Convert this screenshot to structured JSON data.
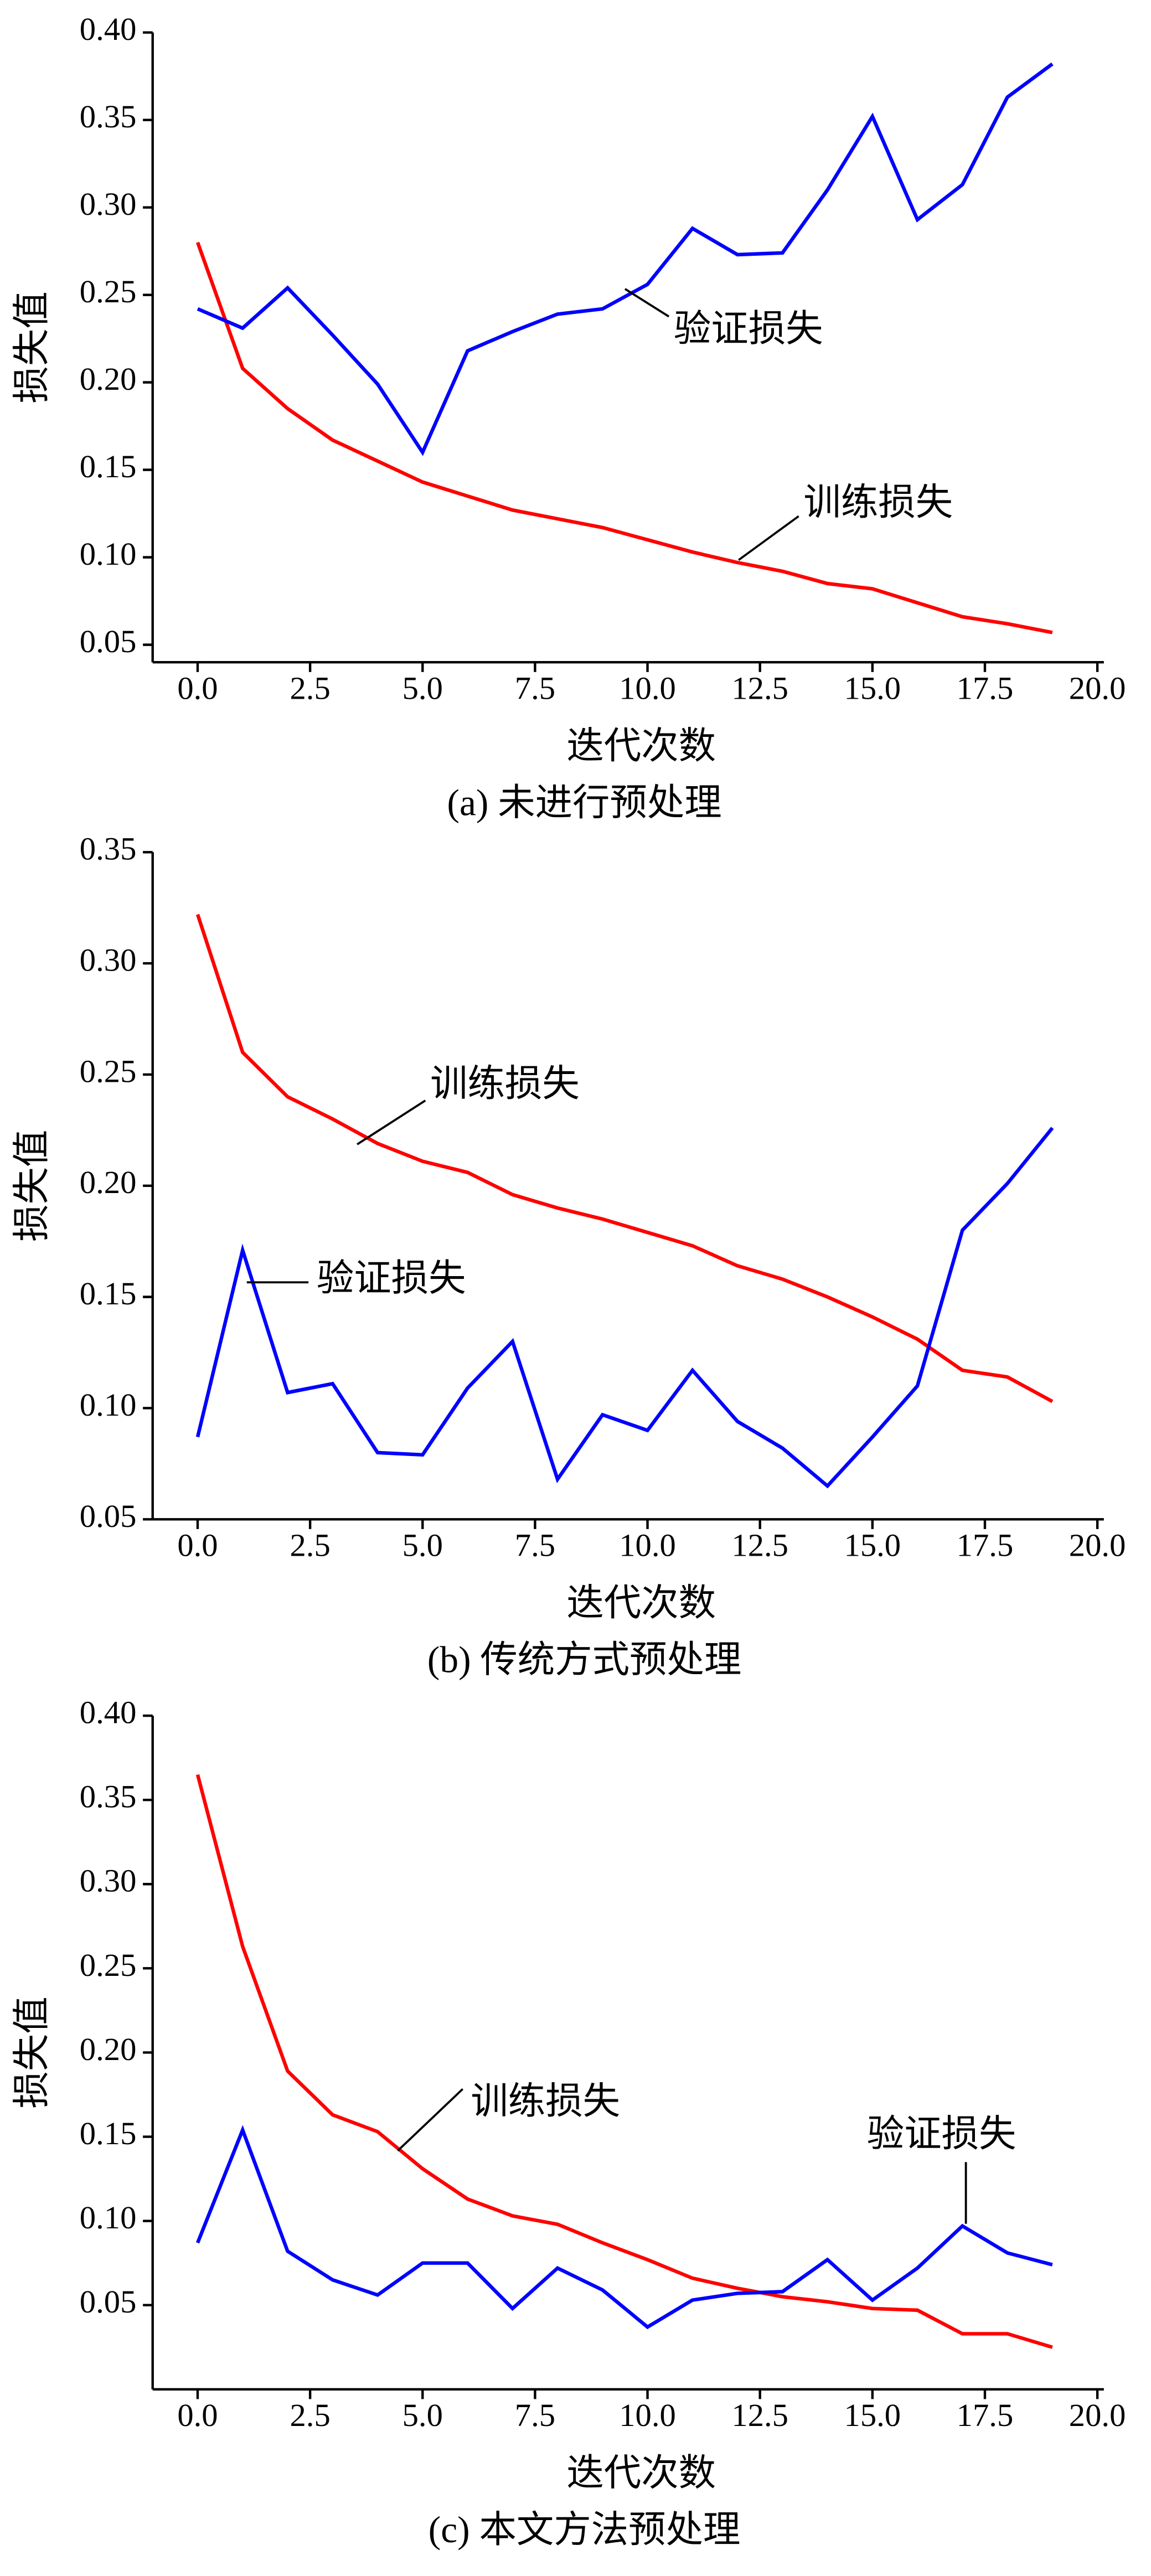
{
  "chart_data": [
    {
      "type": "line",
      "caption": "(a) 未进行预处理",
      "x_label": "迭代次数",
      "y_label": "损失值",
      "x": [
        0,
        1,
        2,
        3,
        4,
        5,
        6,
        7,
        8,
        9,
        10,
        11,
        12,
        13,
        14,
        15,
        16,
        17,
        18,
        19
      ],
      "series": [
        {
          "name": "训练损失",
          "color": "#ff0000",
          "values": [
            0.28,
            0.208,
            0.185,
            0.167,
            0.155,
            0.143,
            0.135,
            0.127,
            0.122,
            0.117,
            0.11,
            0.103,
            0.097,
            0.092,
            0.085,
            0.082,
            0.074,
            0.066,
            0.062,
            0.057
          ]
        },
        {
          "name": "验证损失",
          "color": "#0000ff",
          "values": [
            0.242,
            0.231,
            0.254,
            0.227,
            0.199,
            0.16,
            0.218,
            0.229,
            0.239,
            0.242,
            0.256,
            0.288,
            0.273,
            0.274,
            0.31,
            0.352,
            0.293,
            0.313,
            0.363,
            0.382
          ]
        }
      ],
      "xlim": [
        -1,
        20
      ],
      "ylim": [
        0.04,
        0.4
      ],
      "xticks": [
        {
          "value": 0,
          "label": "0.0"
        },
        2.5,
        {
          "value": 5,
          "label": "5.0"
        },
        7.5,
        {
          "value": 10,
          "label": "10.0"
        },
        12.5,
        {
          "value": 15,
          "label": "15.0"
        },
        17.5,
        {
          "value": 20,
          "label": "20.0"
        }
      ],
      "yticks": [
        0.05,
        {
          "value": 0.1,
          "label": "0.10"
        },
        0.15,
        {
          "value": 0.2,
          "label": "0.20"
        },
        0.25,
        {
          "value": 0.3,
          "label": "0.30"
        },
        0.35,
        {
          "value": 0.4,
          "label": "0.40"
        }
      ]
    },
    {
      "type": "line",
      "caption": "(b) 传统方式预处理",
      "x_label": "迭代次数",
      "y_label": "损失值",
      "x": [
        0,
        1,
        2,
        3,
        4,
        5,
        6,
        7,
        8,
        9,
        10,
        11,
        12,
        13,
        14,
        15,
        16,
        17,
        18,
        19
      ],
      "series": [
        {
          "name": "训练损失",
          "color": "#ff0000",
          "values": [
            0.322,
            0.26,
            0.24,
            0.23,
            0.219,
            0.211,
            0.206,
            0.196,
            0.19,
            0.185,
            0.179,
            0.173,
            0.164,
            0.158,
            0.15,
            0.141,
            0.131,
            0.117,
            0.114,
            0.103
          ]
        },
        {
          "name": "验证损失",
          "color": "#0000ff",
          "values": [
            0.087,
            0.171,
            0.107,
            0.111,
            0.08,
            0.079,
            0.109,
            0.13,
            0.068,
            0.097,
            0.09,
            0.117,
            0.094,
            0.082,
            0.065,
            0.087,
            0.11,
            0.18,
            0.201,
            0.226
          ]
        }
      ],
      "xlim": [
        -1,
        20
      ],
      "ylim": [
        0.05,
        0.35
      ],
      "xticks": [
        {
          "value": 0,
          "label": "0.0"
        },
        2.5,
        {
          "value": 5,
          "label": "5.0"
        },
        7.5,
        {
          "value": 10,
          "label": "10.0"
        },
        12.5,
        {
          "value": 15,
          "label": "15.0"
        },
        17.5,
        {
          "value": 20,
          "label": "20.0"
        }
      ],
      "yticks": [
        0.05,
        {
          "value": 0.1,
          "label": "0.10"
        },
        0.15,
        {
          "value": 0.2,
          "label": "0.20"
        },
        0.25,
        {
          "value": 0.3,
          "label": "0.30"
        },
        0.35
      ]
    },
    {
      "type": "line",
      "caption": "(c) 本文方法预处理",
      "x_label": "迭代次数",
      "y_label": "损失值",
      "x": [
        0,
        1,
        2,
        3,
        4,
        5,
        6,
        7,
        8,
        9,
        10,
        11,
        12,
        13,
        14,
        15,
        16,
        17,
        18,
        19
      ],
      "series": [
        {
          "name": "训练损失",
          "color": "#ff0000",
          "values": [
            0.365,
            0.263,
            0.189,
            0.163,
            0.153,
            0.131,
            0.113,
            0.103,
            0.098,
            0.087,
            0.077,
            0.066,
            0.06,
            0.055,
            0.052,
            0.048,
            0.047,
            0.033,
            0.033,
            0.025
          ]
        },
        {
          "name": "验证损失",
          "color": "#0000ff",
          "values": [
            0.087,
            0.154,
            0.082,
            0.065,
            0.056,
            0.075,
            0.075,
            0.048,
            0.072,
            0.059,
            0.037,
            0.053,
            0.057,
            0.058,
            0.077,
            0.053,
            0.072,
            0.097,
            0.081,
            0.074
          ]
        }
      ],
      "xlim": [
        -1,
        20
      ],
      "ylim": [
        0,
        0.4
      ],
      "xticks": [
        {
          "value": 0,
          "label": "0.0"
        },
        2.5,
        {
          "value": 5,
          "label": "5.0"
        },
        7.5,
        {
          "value": 10,
          "label": "10.0"
        },
        12.5,
        {
          "value": 15,
          "label": "15.0"
        },
        17.5,
        {
          "value": 20,
          "label": "20.0"
        }
      ],
      "yticks": [
        0.05,
        {
          "value": 0.1,
          "label": "0.10"
        },
        0.15,
        {
          "value": 0.2,
          "label": "0.20"
        },
        0.25,
        {
          "value": 0.3,
          "label": "0.30"
        },
        0.35,
        {
          "value": 0.4,
          "label": "0.40"
        }
      ]
    }
  ]
}
